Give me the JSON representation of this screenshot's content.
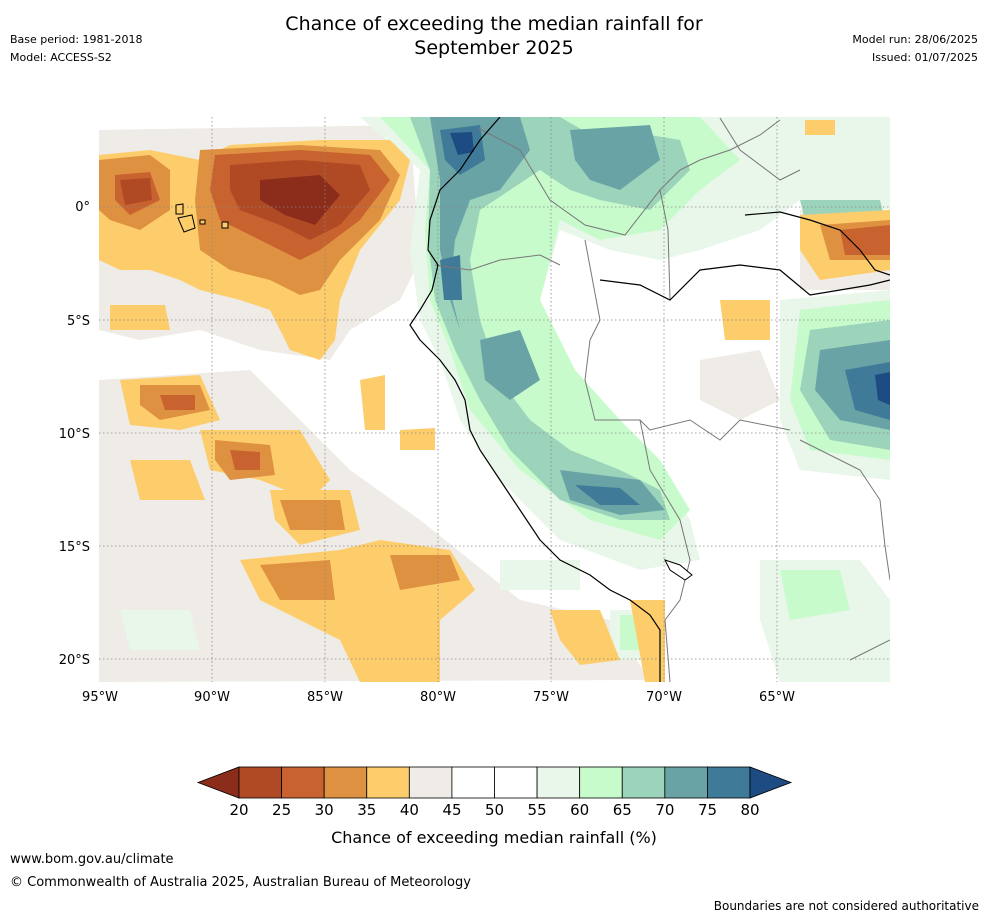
{
  "title_line1": "Chance of exceeding the median rainfall for",
  "title_line2": "September 2025",
  "base_period": "Base period: 1981-2018",
  "model": "Model: ACCESS-S2",
  "model_run": "Model run: 28/06/2025",
  "issued": "Issued: 01/07/2025",
  "map": {
    "lon_labels": [
      "95°W",
      "90°W",
      "85°W",
      "80°W",
      "75°W",
      "70°W",
      "65°W"
    ],
    "lat_labels": [
      "0°",
      "5°S",
      "10°S",
      "15°S",
      "20°S"
    ],
    "lon_range": [
      -95,
      -60
    ],
    "lat_range": [
      -21,
      4
    ]
  },
  "colorbar": {
    "ticks": [
      "20",
      "25",
      "30",
      "35",
      "40",
      "45",
      "50",
      "55",
      "60",
      "65",
      "70",
      "75",
      "80"
    ],
    "label": "Chance of exceeding median rainfall (%)",
    "colors": [
      "#8c2d1c",
      "#b04a25",
      "#c8622f",
      "#df9142",
      "#fdcc6b",
      "#efebe6",
      "#ffffff",
      "#ffffff",
      "#e9f6ea",
      "#c8fbcb",
      "#9cd3bb",
      "#6aa3a6",
      "#3f7a98",
      "#1d4c83"
    ]
  },
  "footer": {
    "website": "www.bom.gov.au/climate",
    "copyright": "© Commonwealth of Australia 2025, Australian Bureau of Meteorology",
    "disclaimer": "Boundaries are not considered authoritative"
  }
}
